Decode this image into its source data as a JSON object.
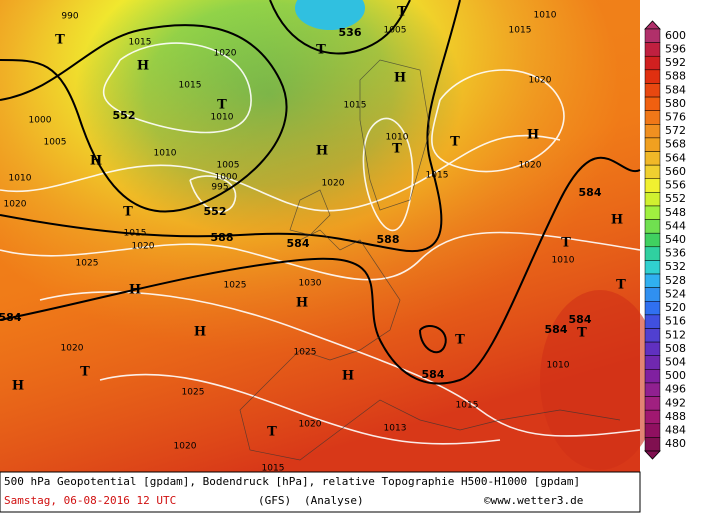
{
  "map": {
    "labels": [
      "990",
      "T",
      "1015",
      "H",
      "1020",
      "1015",
      "T",
      "1010",
      "552",
      "1000",
      "1005",
      "H",
      "1010",
      "1005",
      "1000",
      "995",
      "552",
      "T",
      "1015",
      "588",
      "584",
      "H",
      "1020",
      "536",
      "T",
      "T",
      "1005",
      "H",
      "1015",
      "1010",
      "T",
      "588",
      "1015",
      "T",
      "H",
      "1020",
      "1020",
      "1010",
      "1015",
      "584",
      "H",
      "T",
      "1010",
      "T",
      "584",
      "584",
      "T",
      "1010",
      "T",
      "584",
      "1015",
      "1013",
      "H",
      "H",
      "1030",
      "1025",
      "H",
      "H",
      "1025",
      "1025",
      "1020",
      "1020",
      "584",
      "1020",
      "T",
      "H",
      "1025",
      "1020",
      "1020",
      "T",
      "1015",
      "1010"
    ]
  },
  "legend": {
    "levels": [
      "600",
      "596",
      "592",
      "588",
      "584",
      "580",
      "576",
      "572",
      "568",
      "564",
      "560",
      "556",
      "552",
      "548",
      "544",
      "540",
      "536",
      "532",
      "528",
      "524",
      "520",
      "516",
      "512",
      "508",
      "504",
      "500",
      "496",
      "492",
      "488",
      "484",
      "480"
    ],
    "colors": [
      "#b0306a",
      "#c02040",
      "#d02020",
      "#e03010",
      "#e84810",
      "#f06010",
      "#f07818",
      "#f09020",
      "#f0a020",
      "#f0b828",
      "#f0d030",
      "#f0f030",
      "#d0f030",
      "#a0f040",
      "#70e050",
      "#40d060",
      "#30d0a0",
      "#30d0d0",
      "#30b0f0",
      "#3090f0",
      "#3070f0",
      "#4050e0",
      "#5040d0",
      "#6030c0",
      "#7028b0",
      "#8020a0",
      "#902090",
      "#a02080",
      "#a01870",
      "#901060",
      "#801050"
    ]
  },
  "footer": {
    "line1": "500 hPa Geopotential [gpdam], Bodendruck [hPa], relative Topographie H500-H1000 [gpdam]",
    "date": "Samstag, 06-08-2016  12 UTC",
    "model": "(GFS)",
    "run": "(Analyse)",
    "credit": "©www.wetter3.de"
  }
}
